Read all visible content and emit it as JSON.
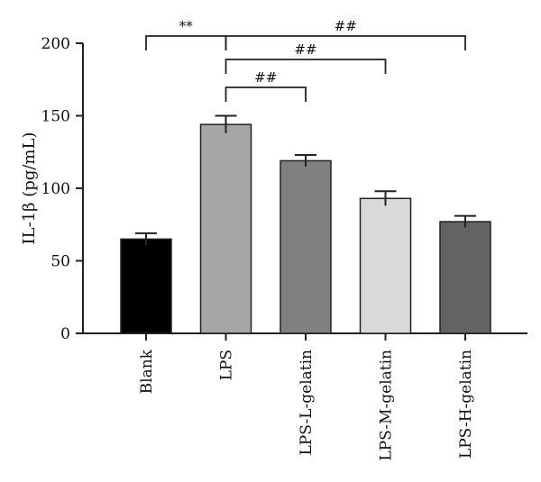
{
  "chart_data": {
    "type": "bar",
    "title": "",
    "xlabel": "",
    "ylabel": "IL-1β (pg/mL)",
    "ylim": [
      0,
      200
    ],
    "yticks": [
      0,
      50,
      100,
      150,
      200
    ],
    "categories": [
      "Blank",
      "LPS",
      "LPS-L-gelatin",
      "LPS-M-gelatin",
      "LPS-H-gelatin"
    ],
    "values": [
      65,
      144,
      119,
      93,
      77
    ],
    "errors": [
      4,
      6,
      4,
      5,
      4
    ],
    "colors": [
      "#000000",
      "#a6a6a6",
      "#808080",
      "#d9d9d9",
      "#636363"
    ],
    "significance": [
      {
        "from": "Blank",
        "to": "LPS",
        "label": "**"
      },
      {
        "from": "LPS",
        "to": "LPS-H-gelatin",
        "label": "##"
      },
      {
        "from": "LPS",
        "to": "LPS-M-gelatin",
        "label": "##"
      },
      {
        "from": "LPS",
        "to": "LPS-L-gelatin",
        "label": "##"
      }
    ]
  }
}
